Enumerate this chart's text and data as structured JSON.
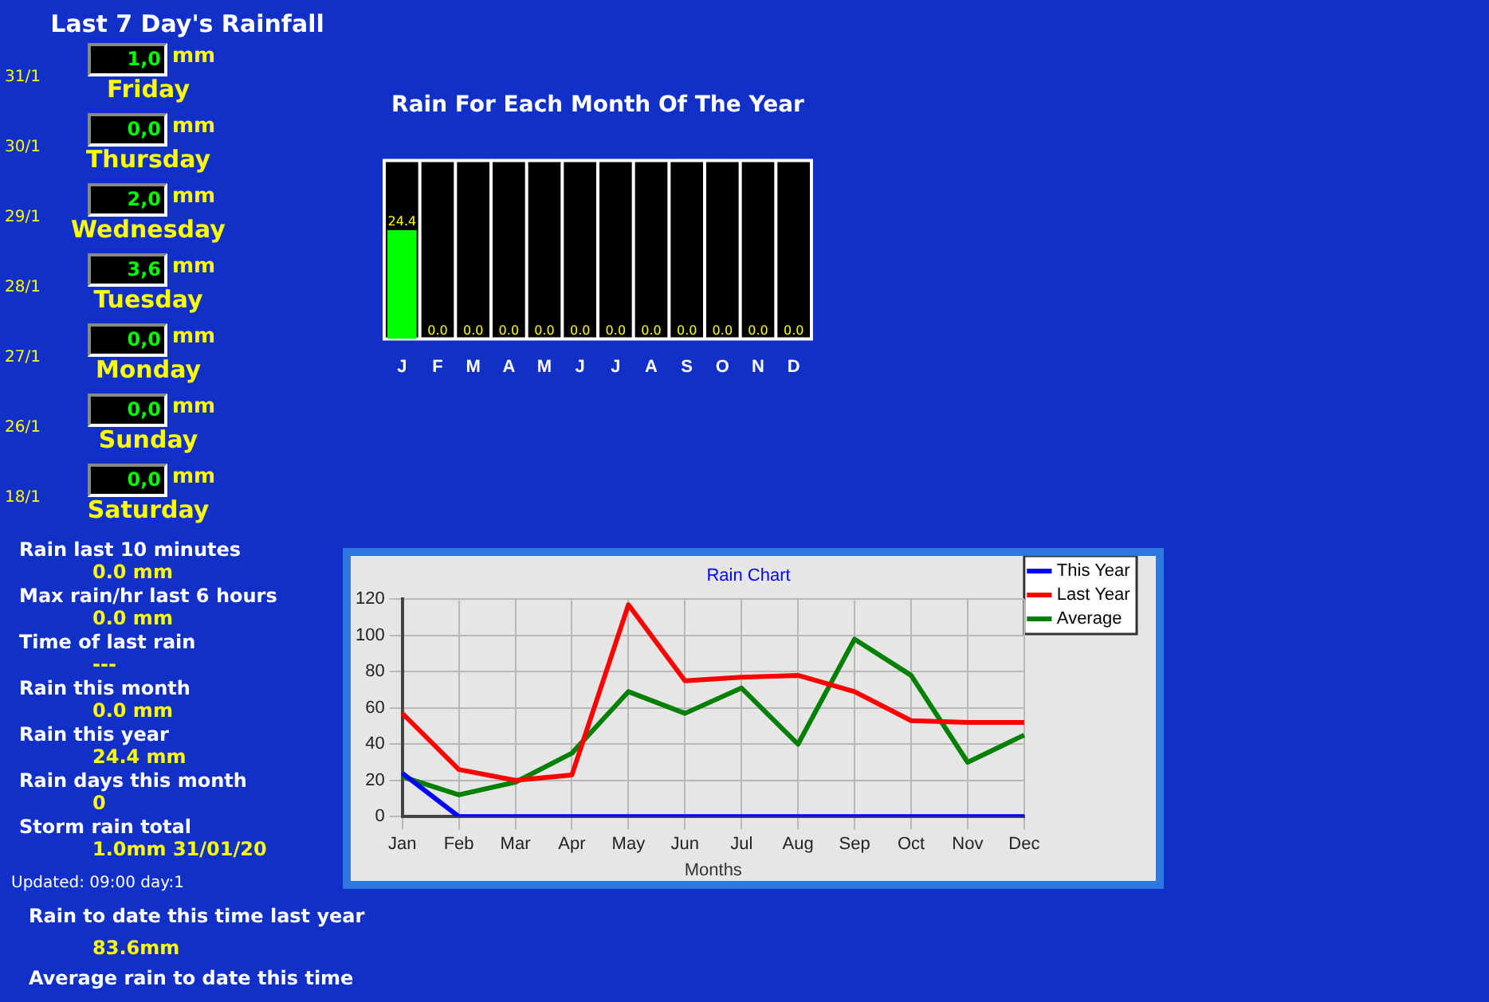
{
  "chart_data": [
    {
      "type": "other",
      "title": "Last 7 Day's Rainfall",
      "annotations": [
        "31/1",
        "1,0",
        "mm",
        "Friday",
        "30/1",
        "0,0",
        "mm",
        "Thursday",
        "29/1",
        "2,0",
        "mm",
        "Wednesday",
        "28/1",
        "3,6",
        "mm",
        "Tuesday",
        "27/1",
        "0,0",
        "mm",
        "Monday",
        "26/1",
        "0,0",
        "mm",
        "Sunday",
        "18/1",
        "0,0",
        "mm",
        "Saturday"
      ]
    },
    {
      "type": "bar",
      "title": "Rain For Each Month Of The Year",
      "categories": [
        "J",
        "F",
        "M",
        "A",
        "M",
        "J",
        "J",
        "A",
        "S",
        "O",
        "N",
        "D"
      ],
      "values": [
        24.4,
        0,
        0,
        0,
        0,
        0,
        0,
        0,
        0,
        0,
        0,
        0
      ],
      "value_labels": [
        "24.4",
        "0.0",
        "0.0",
        "0.0",
        "0.0",
        "0.0",
        "0.0",
        "0.0",
        "0.0",
        "0.0",
        "0.0",
        "0.0"
      ],
      "color": "#00ff00",
      "tick_labels": "x",
      "grid": "x"
    },
    {
      "type": "other",
      "annotations": [
        "Rain last 10 minutes",
        "0.0 mm",
        "Max rain/hr last 6 hours",
        "0.0 mm",
        "Time of last rain",
        "---",
        "Rain this month",
        "0.0 mm",
        "Rain this year",
        "24.4 mm",
        "Rain days this month",
        "0",
        "Storm rain total",
        "1.0mm 31/01/20"
      ]
    },
    {
      "type": "line",
      "title": "Rain Chart",
      "xlabel": "Months",
      "categories": [
        "Jan",
        "Feb",
        "Mar",
        "Apr",
        "May",
        "Jun",
        "Jul",
        "Aug",
        "Sep",
        "Oct",
        "Nov",
        "Dec"
      ],
      "series": [
        {
          "name": "This Year",
          "color": "#0000ff",
          "values": [
            24,
            0,
            0,
            0,
            0,
            0,
            0,
            0,
            0,
            0,
            0,
            0
          ]
        },
        {
          "name": "Last Year",
          "color": "#ff0000",
          "values": [
            57,
            26,
            20,
            23,
            117,
            75,
            77,
            78,
            69,
            53,
            52,
            52
          ]
        },
        {
          "name": "Average",
          "color": "#008000",
          "values": [
            22,
            12,
            19,
            35,
            69,
            57,
            71,
            40,
            98,
            78,
            30,
            45
          ]
        }
      ],
      "ylim": [
        0,
        120
      ],
      "yticks": [
        0,
        20,
        40,
        60,
        80,
        100,
        120
      ],
      "grid": true,
      "legend": "top right"
    },
    {
      "type": "other",
      "annotations": [
        "Updated: 09:00 day:1",
        "Rain to date this time last year",
        "83.6mm",
        "Average rain to date this time"
      ]
    }
  ]
}
